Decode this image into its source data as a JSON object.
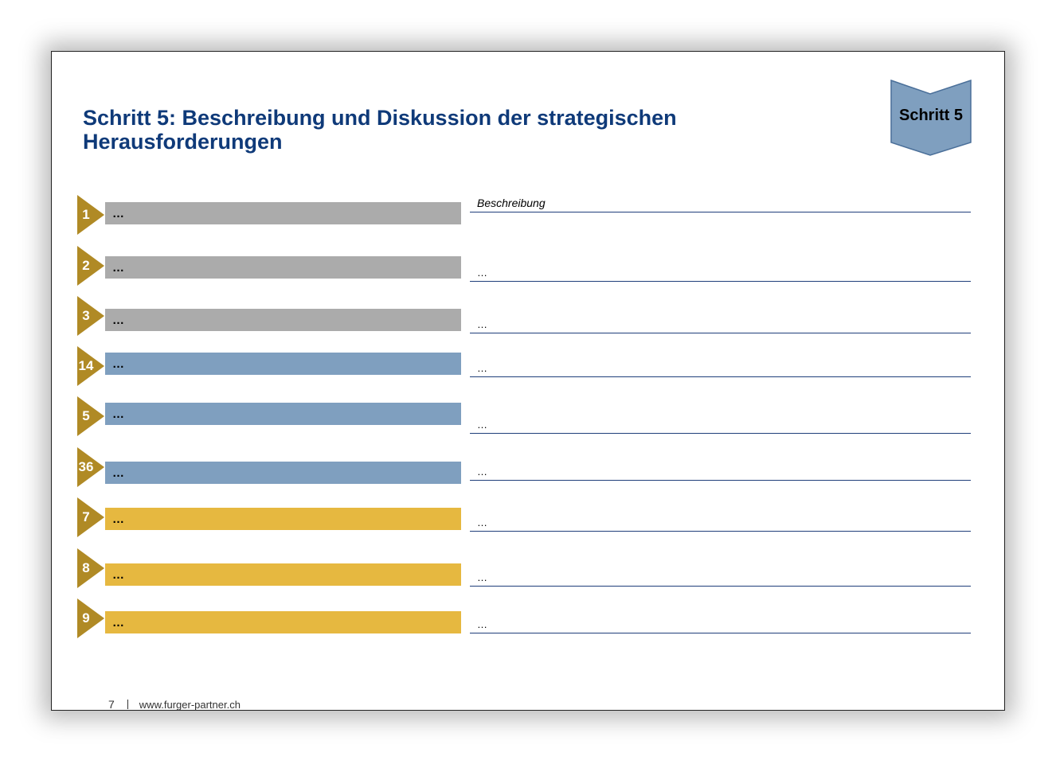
{
  "title": "Schritt 5: Beschreibung und Diskussion der strategischen Herausforderungen",
  "step_badge": "Schritt 5",
  "colors": {
    "title": "#0f3a79",
    "arrow": "#b08a25",
    "grey": "#ababab",
    "blue": "#7f9fbf",
    "gold": "#e6b840",
    "line": "#1f3e7a",
    "badge": "#7f9fbf"
  },
  "rows": [
    {
      "num": "1",
      "label": "…",
      "desc": "Beschreibung",
      "color": "grey"
    },
    {
      "num": "2",
      "label": "…",
      "desc": "…",
      "color": "grey"
    },
    {
      "num": "3",
      "label": "…",
      "desc": "…",
      "color": "grey"
    },
    {
      "num": "14",
      "label": "…",
      "desc": "…",
      "color": "blue"
    },
    {
      "num": "5",
      "label": "…",
      "desc": "…",
      "color": "blue"
    },
    {
      "num": "36",
      "label": "…",
      "desc": "…",
      "color": "blue"
    },
    {
      "num": "7",
      "label": "…",
      "desc": "…",
      "color": "gold"
    },
    {
      "num": "8",
      "label": "…",
      "desc": "…",
      "color": "gold"
    },
    {
      "num": "9",
      "label": "…",
      "desc": "…",
      "color": "gold"
    }
  ],
  "footer": {
    "page": "7",
    "url": "www.furger-partner.ch"
  }
}
